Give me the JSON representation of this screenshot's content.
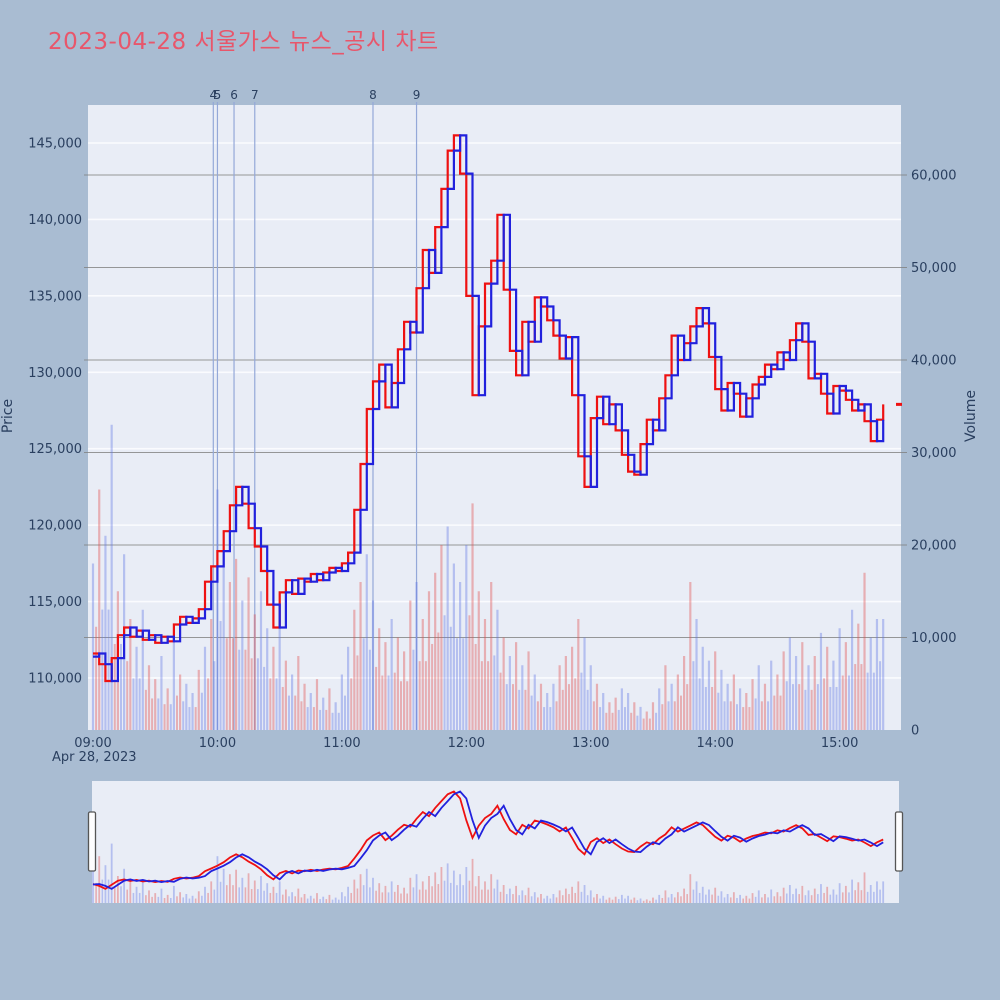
{
  "title": {
    "text": "2023-04-28 서울가스 뉴스_공시 차트"
  },
  "axes": {
    "price": {
      "title": "Price",
      "tick_labels": [
        "110,000",
        "115,000",
        "120,000",
        "125,000",
        "130,000",
        "135,000",
        "140,000",
        "145,000"
      ],
      "tick_values": [
        110000,
        115000,
        120000,
        125000,
        130000,
        135000,
        140000,
        145000
      ]
    },
    "volume": {
      "title": "Volume",
      "tick_labels": [
        "0",
        "10,000",
        "20,000",
        "30,000",
        "40,000",
        "50,000",
        "60,000"
      ],
      "tick_values": [
        0,
        10000,
        20000,
        30000,
        40000,
        50000,
        60000
      ]
    },
    "time": {
      "tick_labels": [
        "09:00",
        "10:00",
        "11:00",
        "12:00",
        "13:00",
        "14:00",
        "15:00"
      ],
      "tick_hours": [
        0,
        1,
        2,
        3,
        4,
        5,
        6
      ],
      "date_label": "Apr 28, 2023"
    }
  },
  "events": {
    "labels": [
      "4",
      "5",
      "6",
      "7",
      "8",
      "9"
    ],
    "minutes_from_0900": [
      58,
      60,
      68,
      78,
      135,
      156
    ]
  },
  "colors": {
    "page_bg": "#a9bcd2",
    "plot_bg": "#e9edf6",
    "title": "#e8566b",
    "text": "#2a3f5f",
    "red_line": "#ee1111",
    "blue_line": "#2121dd",
    "vol_red": "rgba(225,80,80,0.40)",
    "vol_blue": "rgba(95,115,230,0.38)",
    "price_grid": "#fafbfe",
    "volume_grid": "#7f7f7f",
    "event_line": "#94a8d8",
    "handle_fill": "#fdfdfe",
    "handle_stroke": "#555555"
  },
  "last_price": 127900,
  "chart_data": {
    "type": "line",
    "title": "2023-04-28 서울가스 뉴스_공시 차트",
    "x_start": "09:00",
    "x_end": "15:18",
    "x_step_minutes": 3,
    "xlabel": "time (Apr 28, 2023)",
    "ylabel_left": "Price",
    "ylabel_right": "Volume",
    "price_ylim": [
      106500,
      147600
    ],
    "volume_ylim": [
      0,
      68000
    ],
    "grid": true,
    "legend_position": "none",
    "series": [
      {
        "name": "price-red",
        "values": [
          111600,
          110900,
          109800,
          111300,
          112800,
          113300,
          112700,
          113100,
          112500,
          112800,
          112300,
          112700,
          112400,
          113500,
          114000,
          113600,
          113900,
          114500,
          116300,
          117300,
          118300,
          119600,
          121300,
          122500,
          121400,
          119800,
          118600,
          117000,
          114800,
          113300,
          115600,
          116400,
          115500,
          116500,
          116300,
          116800,
          116400,
          116900,
          117200,
          117000,
          117500,
          118200,
          121000,
          124000,
          127600,
          129400,
          130500,
          127700,
          129300,
          131500,
          133300,
          132600,
          135500,
          138000,
          136500,
          139500,
          142000,
          144500,
          145500,
          143000,
          135000,
          128500,
          133000,
          135800,
          137300,
          140300,
          135400,
          131400,
          129800,
          133300,
          132000,
          134900,
          134300,
          133400,
          132400,
          130900,
          132300,
          128500,
          124500,
          122500,
          127000,
          128400,
          126600,
          127900,
          126200,
          124600,
          123500,
          123300,
          125300,
          126900,
          126200,
          128300,
          129800,
          132400,
          130800,
          131900,
          133000,
          134200,
          133200,
          131000,
          128900,
          127500,
          129300,
          128600,
          127100,
          128300,
          129200,
          129700,
          130500,
          130200,
          131300,
          130800,
          132100,
          133200,
          132000,
          129600,
          129900,
          128600,
          127300,
          129100,
          128800,
          128200,
          127500,
          127900,
          126800,
          125500,
          126900,
          127900
        ]
      },
      {
        "name": "price-blue",
        "values": [
          111400,
          111600,
          110900,
          109800,
          111300,
          112800,
          113300,
          112700,
          113100,
          112500,
          112800,
          112300,
          112700,
          112400,
          113500,
          114000,
          113600,
          113900,
          114500,
          116300,
          117300,
          118300,
          119600,
          121300,
          122500,
          121400,
          119800,
          118600,
          117000,
          114800,
          113300,
          115600,
          116400,
          115500,
          116500,
          116300,
          116800,
          116400,
          116900,
          117200,
          117000,
          117500,
          118200,
          121000,
          124000,
          127600,
          129400,
          130500,
          127700,
          129300,
          131500,
          133300,
          132600,
          135500,
          138000,
          136500,
          139500,
          142000,
          144500,
          145500,
          143000,
          135000,
          128500,
          133000,
          135800,
          137300,
          140300,
          135400,
          131400,
          129800,
          133300,
          132000,
          134900,
          134300,
          133400,
          132400,
          130900,
          132300,
          128500,
          124500,
          122500,
          127000,
          128400,
          126600,
          127900,
          126200,
          124600,
          123500,
          123300,
          125300,
          126900,
          126200,
          128300,
          129800,
          132400,
          130800,
          131900,
          133000,
          134200,
          133200,
          131000,
          128900,
          127500,
          129300,
          128600,
          127100,
          128300,
          129200,
          129700,
          130500,
          130200,
          131300,
          130800,
          132100,
          133200,
          132000,
          129600,
          129900,
          128600,
          127300,
          129100,
          128800,
          128200,
          127500,
          127900,
          126800,
          125500,
          126900
        ]
      }
    ],
    "volume": {
      "name": "volume-bars",
      "values": [
        18000,
        26000,
        21000,
        33000,
        15000,
        19000,
        12000,
        9000,
        13000,
        7000,
        5500,
        8000,
        4500,
        9500,
        6000,
        5000,
        4000,
        6500,
        9000,
        12000,
        26000,
        19000,
        16000,
        18500,
        14000,
        16500,
        12500,
        15000,
        11000,
        9000,
        12000,
        7500,
        6000,
        8000,
        5000,
        4000,
        5500,
        3500,
        4500,
        3000,
        6000,
        9000,
        13000,
        16000,
        19000,
        14000,
        11000,
        9500,
        12000,
        10000,
        8500,
        14000,
        16000,
        12000,
        15000,
        17000,
        20000,
        22000,
        18000,
        16000,
        20000,
        24500,
        15000,
        12000,
        16000,
        13000,
        10000,
        8000,
        9500,
        7000,
        8500,
        6000,
        5000,
        4000,
        5000,
        7000,
        8000,
        9000,
        12000,
        10000,
        7000,
        5000,
        4000,
        3000,
        3500,
        4500,
        4000,
        3000,
        2500,
        2000,
        3000,
        4500,
        7000,
        5000,
        6000,
        8000,
        16000,
        12000,
        9000,
        7500,
        8500,
        6500,
        5000,
        6000,
        4500,
        4000,
        5500,
        7000,
        5000,
        7500,
        6000,
        8500,
        10000,
        8000,
        9500,
        7000,
        8000,
        10500,
        9000,
        7500,
        11000,
        9500,
        13000,
        11500,
        17000,
        10000,
        12000,
        12000
      ],
      "colors": "brbbrbrbbrrbrbrbbrbrbbrrbrrbbrbrbrrbrbrbbbrrbbrrbrrrbrrrrbbbbrrrrbrbrbrbrbbrrrrbbrbrrbbrbrrbrbrrrbbbrbbrbrrbrbrrbbrbrbrbbrbrrbb"
    }
  },
  "navigator": {
    "left_handle": "range-start",
    "right_handle": "range-end"
  }
}
